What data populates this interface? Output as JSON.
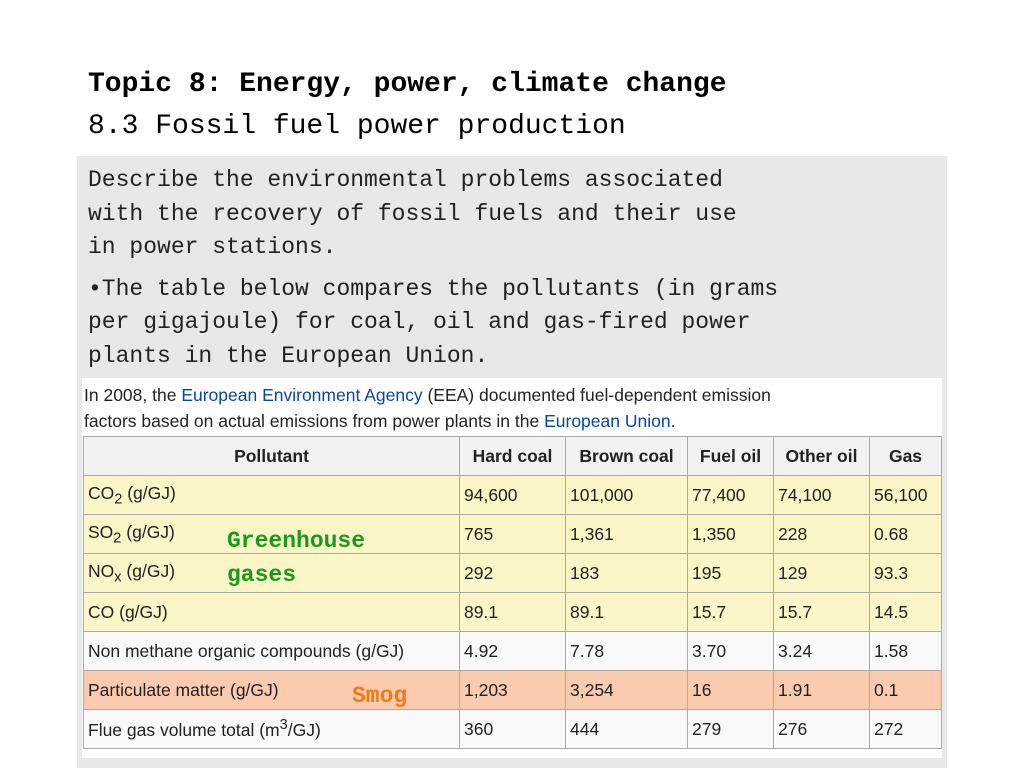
{
  "header": {
    "title": "Topic 8: Energy, power, climate change",
    "subtitle": "8.3 Fossil fuel power production"
  },
  "content": {
    "paragraph1": "Describe the environmental problems associated\nwith the recovery of fossil fuels and their use\nin power stations.",
    "paragraph2": "•The table below compares the pollutants (in grams\nper gigajoule) for coal, oil and gas-fired power\nplants in the European Union."
  },
  "wiki": {
    "intro_a": "In 2008, the ",
    "intro_link1": "European Environment Agency",
    "intro_b": " (EEA) documented fuel-dependent emission\nfactors based on actual emissions from power plants in the ",
    "intro_link2": "European Union",
    "intro_c": ".",
    "link_color": "#0645ad"
  },
  "table": {
    "headers": [
      "Pollutant",
      "Hard coal",
      "Brown coal",
      "Fuel oil",
      "Other oil",
      "Gas"
    ],
    "rows": [
      {
        "pollutant_html": "CO<sub>2</sub> (g/GJ)",
        "values": [
          "94,600",
          "101,000",
          "77,400",
          "74,100",
          "56,100"
        ],
        "color": "yellow"
      },
      {
        "pollutant_html": "SO<sub>2</sub> (g/GJ)",
        "values": [
          "765",
          "1,361",
          "1,350",
          "228",
          "0.68"
        ],
        "color": "yellow"
      },
      {
        "pollutant_html": "NO<sub>x</sub> (g/GJ)",
        "values": [
          "292",
          "183",
          "195",
          "129",
          "93.3"
        ],
        "color": "yellow"
      },
      {
        "pollutant_html": "CO (g/GJ)",
        "values": [
          "89.1",
          "89.1",
          "15.7",
          "15.7",
          "14.5"
        ],
        "color": "yellow"
      },
      {
        "pollutant_html": "Non methane organic compounds (g/GJ)",
        "values": [
          "4.92",
          "7.78",
          "3.70",
          "3.24",
          "1.58"
        ],
        "color": "white"
      },
      {
        "pollutant_html": "Particulate matter (g/GJ)",
        "values": [
          "1,203",
          "3,254",
          "16",
          "1.91",
          "0.1"
        ],
        "color": "orange"
      },
      {
        "pollutant_html": "Flue gas volume total (m<sup>3</sup>/GJ)",
        "values": [
          "360",
          "444",
          "279",
          "276",
          "272"
        ],
        "color": "white"
      }
    ]
  },
  "annotations": {
    "greenhouse_line1": "Greenhouse",
    "greenhouse_line2": "gases",
    "greenhouse_color": "#1a9a1a",
    "smog": "Smog",
    "smog_color": "#f07a17"
  }
}
